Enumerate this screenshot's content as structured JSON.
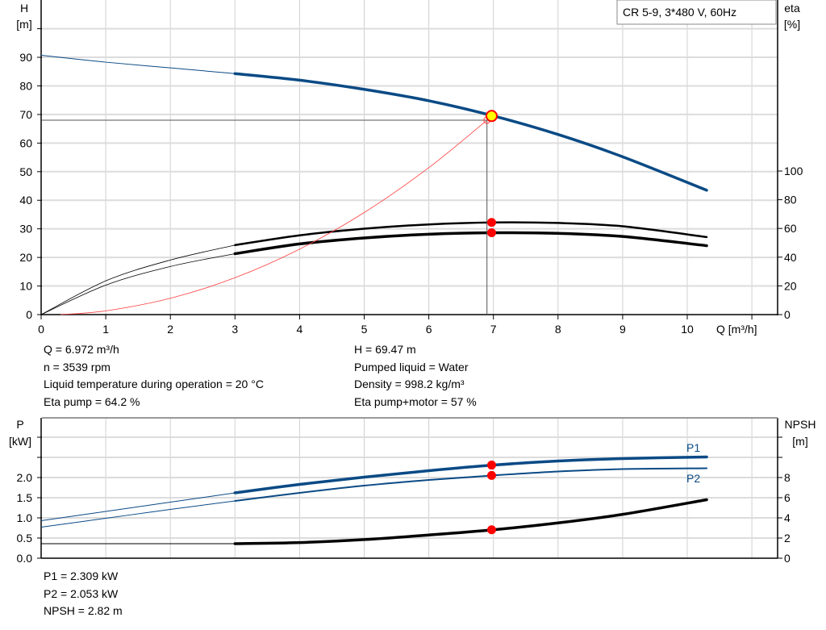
{
  "title_box": "CR 5-9, 3*480 V, 60Hz",
  "colors": {
    "head": "#0a4a85",
    "power": "#0a4a85",
    "efficiency": "#000000",
    "npsh": "#000000",
    "system": "#ff4040",
    "duty_marker_fill": "#ffff00",
    "operating_point": "#ff0000",
    "grid": "#d0d0d0"
  },
  "chart_data": [
    {
      "type": "line",
      "xlabel": "Q [m³/h]",
      "ylabel_left": [
        "H",
        "[m]"
      ],
      "ylabel_right": [
        "eta",
        "[%]"
      ],
      "x_ticks": [
        "0",
        "1",
        "2",
        "3",
        "4",
        "5",
        "6",
        "7",
        "8",
        "9",
        "10"
      ],
      "y_left_ticks": [
        "0",
        "10",
        "20",
        "30",
        "40",
        "50",
        "60",
        "70",
        "80",
        "90"
      ],
      "y_right_ticks": [
        "0",
        "20",
        "40",
        "60",
        "80",
        "100"
      ],
      "xlim": [
        0,
        11.4
      ],
      "ylim_left": [
        0,
        110
      ],
      "ylim_right": [
        0,
        100
      ],
      "grid": true,
      "series": [
        {
          "key": "head",
          "axis": "left",
          "x": [
            0,
            1,
            2,
            3,
            4,
            5,
            6,
            7,
            8,
            9,
            10.3
          ],
          "y": [
            90.7,
            88.3,
            86.3,
            84.3,
            82.0,
            78.8,
            74.8,
            69.5,
            63.0,
            55.2,
            43.5
          ],
          "thin_until": 3
        },
        {
          "key": "eta_pump",
          "axis": "right",
          "x": [
            0,
            1,
            2,
            3,
            4,
            5,
            6,
            7,
            8,
            9,
            10.3
          ],
          "y": [
            0,
            23.5,
            38,
            48.4,
            55.2,
            59.8,
            62.8,
            64.2,
            63.8,
            61.5,
            54
          ],
          "thin_until": 3
        },
        {
          "key": "eta_pump_motor",
          "axis": "right",
          "x": [
            0,
            1,
            2,
            3,
            4,
            5,
            6,
            7,
            8,
            9,
            10.3
          ],
          "y": [
            0,
            20.5,
            33.5,
            42.4,
            49.2,
            53.4,
            56,
            57,
            56.6,
            54.4,
            48
          ],
          "thin_until": 3
        },
        {
          "key": "system_curve",
          "axis": "left",
          "x": [
            0.3,
            1,
            2,
            3,
            4,
            5,
            6,
            6.9
          ],
          "y": [
            0,
            1.3,
            5.7,
            12.9,
            22.9,
            35.7,
            51.4,
            68
          ],
          "thin_until": 7
        }
      ],
      "duty_point": {
        "q": 6.972,
        "h": 69.47
      },
      "system_point": {
        "q": 6.9,
        "h": 68
      },
      "eta_points": [
        64.2,
        57
      ]
    },
    {
      "type": "line",
      "ylabel_left": [
        "P",
        "[kW]"
      ],
      "ylabel_right": [
        "NPSH",
        "[m]"
      ],
      "y_left_ticks": [
        "0.0",
        "0.5",
        "1.0",
        "1.5",
        "2.0"
      ],
      "y_right_ticks": [
        "0",
        "2",
        "4",
        "6",
        "8"
      ],
      "xlim": [
        0,
        11.4
      ],
      "ylim_left": [
        0,
        3.5
      ],
      "ylim_right": [
        0,
        14
      ],
      "grid": true,
      "series": [
        {
          "key": "P1",
          "name": "P1",
          "axis": "left",
          "x": [
            0,
            1,
            2,
            3,
            4,
            5,
            6,
            7,
            8,
            9,
            10.3
          ],
          "y": [
            0.93,
            1.16,
            1.39,
            1.62,
            1.83,
            2.01,
            2.17,
            2.309,
            2.41,
            2.47,
            2.51
          ],
          "thin_until": 3
        },
        {
          "key": "P2",
          "name": "P2",
          "axis": "left",
          "x": [
            0,
            1,
            2,
            3,
            4,
            5,
            6,
            7,
            8,
            9,
            10.3
          ],
          "y": [
            0.77,
            0.99,
            1.21,
            1.42,
            1.62,
            1.8,
            1.94,
            2.053,
            2.15,
            2.21,
            2.23
          ],
          "thin_until": 3
        },
        {
          "key": "NPSH",
          "axis": "right",
          "x": [
            0,
            1,
            2,
            3,
            4,
            5,
            6,
            7,
            8,
            9,
            10.3
          ],
          "y": [
            1.44,
            1.44,
            1.44,
            1.44,
            1.55,
            1.85,
            2.3,
            2.82,
            3.5,
            4.35,
            5.8
          ],
          "thin_until": 3
        }
      ],
      "points": {
        "P1": 2.309,
        "P2": 2.053,
        "NPSH": 2.82,
        "q": 6.972
      }
    }
  ],
  "info": {
    "left": [
      "Q = 6.972 m³/h",
      "n = 3539 rpm",
      "Liquid temperature during operation = 20 °C",
      "Eta pump = 64.2 %"
    ],
    "right": [
      "H = 69.47 m",
      "Pumped liquid = Water",
      "Density = 998.2 kg/m³",
      "Eta pump+motor = 57 %"
    ],
    "bottom": [
      "P1 = 2.309 kW",
      "P2 = 2.053 kW",
      "NPSH = 2.82 m"
    ]
  }
}
